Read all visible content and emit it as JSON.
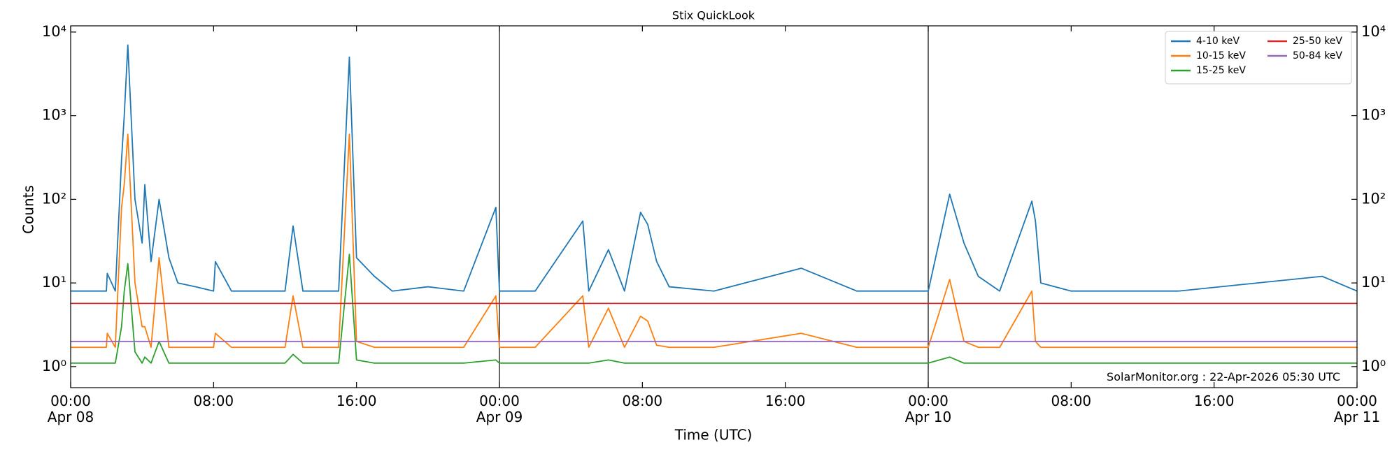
{
  "chart_data": {
    "type": "line",
    "title": "Stix QuickLook",
    "xlabel": "Time (UTC)",
    "ylabel": "Counts",
    "yscale": "log",
    "legend": "upper right",
    "annotation": "SolarMonitor.org : 22-Apr-2026 05:30 UTC",
    "xlim": [
      "Apr 08 00:00",
      "Apr 11 00:00"
    ],
    "xticks": [
      {
        "value": "Apr 08 00:00",
        "label": "00:00\nApr 08"
      },
      {
        "value": "Apr 08 08:00",
        "label": "08:00"
      },
      {
        "value": "Apr 08 16:00",
        "label": "16:00"
      },
      {
        "value": "Apr 09 00:00",
        "label": "00:00\nApr 09"
      },
      {
        "value": "Apr 09 08:00",
        "label": "08:00"
      },
      {
        "value": "Apr 09 16:00",
        "label": "16:00"
      },
      {
        "value": "Apr 10 00:00",
        "label": "00:00\nApr 10"
      },
      {
        "value": "Apr 10 08:00",
        "label": "08:00"
      },
      {
        "value": "Apr 10 16:00",
        "label": "16:00"
      },
      {
        "value": "Apr 11 00:00",
        "label": "00:00\nApr 11"
      }
    ],
    "vlines": [
      "Apr 09 00:00",
      "Apr 10 00:00"
    ],
    "ylim": [
      0.56,
      11860
    ],
    "yticks": [
      {
        "value": 1,
        "label": "10⁰"
      },
      {
        "value": 10,
        "label": "10¹"
      },
      {
        "value": 100,
        "label": "10²"
      },
      {
        "value": 1000,
        "label": "10³"
      },
      {
        "value": 10000,
        "label": "10⁴"
      }
    ],
    "x": [
      "Apr 08 00:00",
      "Apr 08 01:00",
      "Apr 08 02:00",
      "Apr 08 02:03",
      "Apr 08 02:30",
      "Apr 08 02:51",
      "Apr 08 03:00",
      "Apr 08 03:12",
      "Apr 08 03:36",
      "Apr 08 04:00",
      "Apr 08 04:09",
      "Apr 08 04:30",
      "Apr 08 04:57",
      "Apr 08 05:30",
      "Apr 08 06:00",
      "Apr 08 07:00",
      "Apr 08 08:00",
      "Apr 08 08:06",
      "Apr 08 09:00",
      "Apr 08 10:00",
      "Apr 08 11:00",
      "Apr 08 12:00",
      "Apr 08 12:27",
      "Apr 08 13:00",
      "Apr 08 14:00",
      "Apr 08 15:00",
      "Apr 08 15:36",
      "Apr 08 16:00",
      "Apr 08 17:00",
      "Apr 08 18:00",
      "Apr 08 20:00",
      "Apr 08 22:00",
      "Apr 08 23:48",
      "Apr 09 00:00",
      "Apr 09 02:00",
      "Apr 09 04:40",
      "Apr 09 05:00",
      "Apr 09 06:06",
      "Apr 09 07:00",
      "Apr 09 07:54",
      "Apr 09 08:18",
      "Apr 09 08:48",
      "Apr 09 09:30",
      "Apr 09 12:00",
      "Apr 09 16:54",
      "Apr 09 20:00",
      "Apr 10 00:00",
      "Apr 10 01:12",
      "Apr 10 02:00",
      "Apr 10 02:48",
      "Apr 10 04:00",
      "Apr 10 05:48",
      "Apr 10 06:00",
      "Apr 10 06:18",
      "Apr 10 08:00",
      "Apr 10 14:00",
      "Apr 10 22:03",
      "Apr 11 00:00"
    ],
    "series": [
      {
        "name": "4-10 keV",
        "color": "#1f77b4",
        "values": [
          8,
          8,
          8,
          13,
          8,
          300,
          1000,
          7000,
          100,
          30,
          150,
          18,
          100,
          20,
          10,
          9,
          8,
          18,
          8,
          8,
          8,
          8,
          48,
          8,
          8,
          8,
          5000,
          20,
          12,
          8,
          9,
          8,
          80,
          8,
          8,
          55,
          8,
          25,
          8,
          70,
          50,
          18,
          9,
          8,
          15,
          8,
          8,
          115,
          30,
          12,
          8,
          95,
          55,
          10,
          8,
          8,
          12,
          8
        ]
      },
      {
        "name": "10-15 keV",
        "color": "#ff7f0e",
        "values": [
          1.7,
          1.7,
          1.7,
          2.5,
          1.7,
          80,
          150,
          600,
          10,
          3,
          3,
          1.7,
          20,
          1.7,
          1.7,
          1.7,
          1.7,
          2.5,
          1.7,
          1.7,
          1.7,
          1.7,
          7,
          1.7,
          1.7,
          1.7,
          600,
          2,
          1.7,
          1.7,
          1.7,
          1.7,
          7,
          1.7,
          1.7,
          7,
          1.7,
          5,
          1.7,
          4,
          3.5,
          1.8,
          1.7,
          1.7,
          2.5,
          1.7,
          1.7,
          11,
          2,
          1.7,
          1.7,
          8,
          2,
          1.7,
          1.7,
          1.7,
          1.7,
          1.7
        ]
      },
      {
        "name": "15-25 keV",
        "color": "#2ca02c",
        "values": [
          1.1,
          1.1,
          1.1,
          1.1,
          1.1,
          3,
          8,
          17,
          1.5,
          1.1,
          1.3,
          1.1,
          2,
          1.1,
          1.1,
          1.1,
          1.1,
          1.1,
          1.1,
          1.1,
          1.1,
          1.1,
          1.4,
          1.1,
          1.1,
          1.1,
          22,
          1.2,
          1.1,
          1.1,
          1.1,
          1.1,
          1.2,
          1.1,
          1.1,
          1.1,
          1.1,
          1.2,
          1.1,
          1.1,
          1.1,
          1.1,
          1.1,
          1.1,
          1.1,
          1.1,
          1.1,
          1.3,
          1.1,
          1.1,
          1.1,
          1.1,
          1.1,
          1.1,
          1.1,
          1.1,
          1.1,
          1.1
        ]
      },
      {
        "name": "25-50 keV",
        "color": "#d62728",
        "values": [
          5.7,
          5.7,
          5.7,
          5.7,
          5.7,
          5.7,
          5.7,
          5.7,
          5.7,
          5.7,
          5.7,
          5.7,
          5.7,
          5.7,
          5.7,
          5.7,
          5.7,
          5.7,
          5.7,
          5.7,
          5.7,
          5.7,
          5.7,
          5.7,
          5.7,
          5.7,
          5.7,
          5.7,
          5.7,
          5.7,
          5.7,
          5.7,
          5.7,
          5.7,
          5.7,
          5.7,
          5.7,
          5.7,
          5.7,
          5.7,
          5.7,
          5.7,
          5.7,
          5.7,
          5.7,
          5.7,
          5.7,
          5.7,
          5.7,
          5.7,
          5.7,
          5.7,
          5.7,
          5.7,
          5.7,
          5.7,
          5.7,
          5.7
        ]
      },
      {
        "name": "50-84 keV",
        "color": "#9467bd",
        "values": [
          2,
          2,
          2,
          2,
          2,
          2,
          2,
          2,
          2,
          2,
          2,
          2,
          2,
          2,
          2,
          2,
          2,
          2,
          2,
          2,
          2,
          2,
          2,
          2,
          2,
          2,
          2,
          2,
          2,
          2,
          2,
          2,
          2,
          2,
          2,
          2,
          2,
          2,
          2,
          2,
          2,
          2,
          2,
          2,
          2,
          2,
          2,
          2,
          2,
          2,
          2,
          2,
          2,
          2,
          2,
          2,
          2,
          2
        ]
      }
    ]
  }
}
